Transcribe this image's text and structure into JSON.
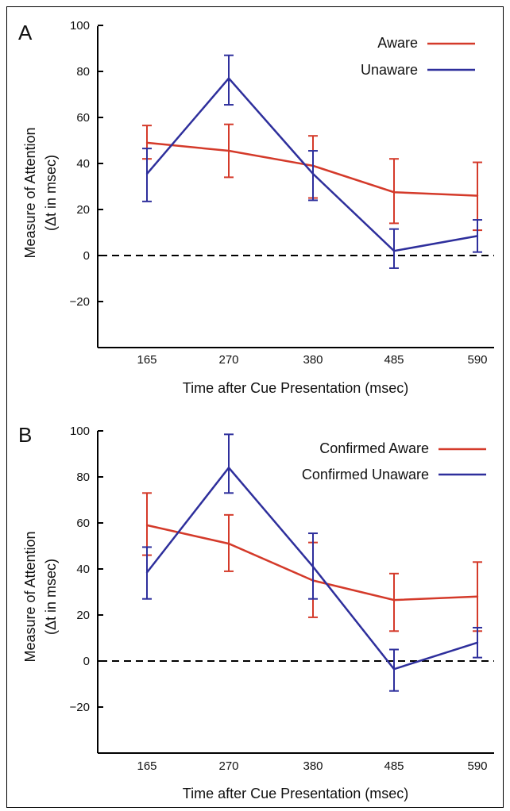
{
  "chart_data": [
    {
      "panel_label": "A",
      "type": "line",
      "xlabel": "Time after Cue Presentation (msec)",
      "ylabel_line1": "Measure of Attention",
      "ylabel_line2": "(Δt in msec)",
      "categories": [
        "165",
        "270",
        "380",
        "485",
        "590"
      ],
      "yticks": [
        100,
        80,
        60,
        40,
        20,
        0,
        -20
      ],
      "ylim": [
        -40,
        100
      ],
      "reference_line": 0,
      "series": [
        {
          "name": "Aware",
          "color": "#d43a2a",
          "values": [
            49,
            45.5,
            39,
            27.5,
            26
          ],
          "err_low": [
            42,
            34,
            25,
            14,
            11
          ],
          "err_high": [
            56.5,
            57,
            52,
            42,
            40.5
          ]
        },
        {
          "name": "Unaware",
          "color": "#2e2f9c",
          "values": [
            35.5,
            77,
            35.5,
            2,
            8.5
          ],
          "err_low": [
            23.5,
            65.5,
            24,
            -5.5,
            1.5
          ],
          "err_high": [
            46.5,
            87,
            45.5,
            11.5,
            15.5
          ]
        }
      ]
    },
    {
      "panel_label": "B",
      "type": "line",
      "xlabel": "Time after Cue Presentation (msec)",
      "ylabel_line1": "Measure of Attention",
      "ylabel_line2": "(Δt in msec)",
      "categories": [
        "165",
        "270",
        "380",
        "485",
        "590"
      ],
      "yticks": [
        100,
        80,
        60,
        40,
        20,
        0,
        -20
      ],
      "ylim": [
        -40,
        100
      ],
      "reference_line": 0,
      "series": [
        {
          "name": "Confirmed Aware",
          "color": "#d43a2a",
          "values": [
            59,
            51,
            35,
            26.5,
            28
          ],
          "err_low": [
            46,
            39,
            19,
            13,
            13
          ],
          "err_high": [
            73,
            63.5,
            51.5,
            38,
            43
          ]
        },
        {
          "name": "Confirmed Unaware",
          "color": "#2e2f9c",
          "values": [
            38.5,
            84,
            41,
            -3.5,
            8
          ],
          "err_low": [
            27,
            73,
            27,
            -13,
            1.5
          ],
          "err_high": [
            49.5,
            98.5,
            55.5,
            5,
            14.5
          ]
        }
      ]
    }
  ]
}
